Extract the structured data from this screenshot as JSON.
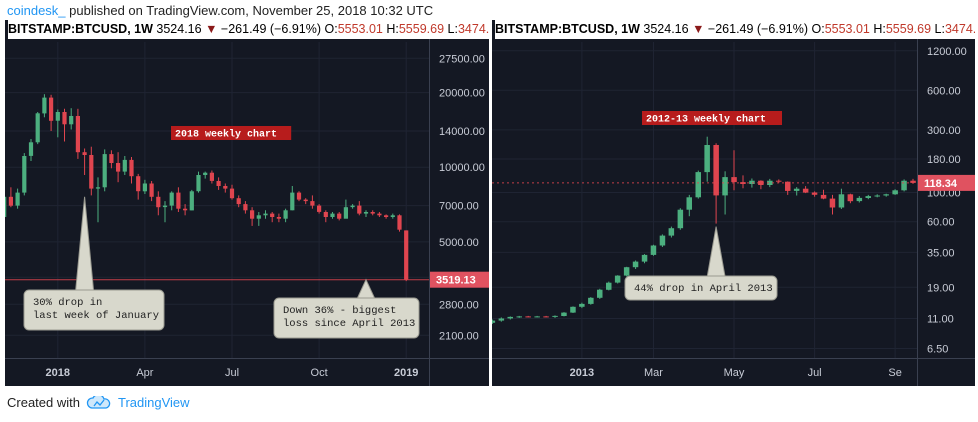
{
  "header": {
    "brand": "coindesk_",
    "text": " published on TradingView.com, November 25, 2018 10:32 UTC"
  },
  "footer": {
    "created_with": "Created with",
    "tradingview": "TradingView"
  },
  "colors": {
    "up": "#4caf7f",
    "down": "#e0454f",
    "background": "#141823",
    "label_bg": "#b71c1c",
    "price_tag": "#e05260"
  },
  "chart_data": [
    {
      "type": "candlestick",
      "symbol": "BITSTAMP:BTCUSD",
      "interval": "1W",
      "last": "3524.16",
      "change": "−261.49 (−6.91%)",
      "open": "5553.01",
      "high": "5559.69",
      "low": "3474.",
      "y_scale": "log",
      "ylim": [
        1700,
        32000
      ],
      "y_ticks": [
        "27500.00",
        "20000.00",
        "14000.00",
        "10000.00",
        "7000.00",
        "5000.00",
        "3600.00",
        "2800.00",
        "2100.00"
      ],
      "y_tick_values": [
        27500,
        20000,
        14000,
        10000,
        7000,
        5000,
        3600,
        2800,
        2100
      ],
      "x_ticks": [
        "2018",
        "Apr",
        "Jul",
        "Oct",
        "2019"
      ],
      "x_tick_weeks": [
        0,
        13,
        26,
        39,
        52
      ],
      "x_start_week": -9,
      "last_price_tag": "3519.13",
      "last_price_value": 3519.13,
      "label_tag": "2018 weekly chart",
      "callouts": [
        {
          "text": "30% drop in\nlast week of January",
          "week": 4,
          "price": 7600
        },
        {
          "text": "Down 36% - biggest\nloss since April 2013",
          "week": 46,
          "price": 3519
        }
      ],
      "candles": [
        [
          5900,
          6500,
          5500,
          6300
        ],
        [
          6300,
          7800,
          6100,
          7600
        ],
        [
          7600,
          8300,
          6900,
          7000
        ],
        [
          7000,
          8200,
          6800,
          7900
        ],
        [
          7900,
          11400,
          7700,
          11100
        ],
        [
          11100,
          13000,
          10600,
          12600
        ],
        [
          12600,
          16700,
          12400,
          16500
        ],
        [
          16500,
          19700,
          15900,
          19100
        ],
        [
          19100,
          19600,
          14000,
          15400
        ],
        [
          15400,
          17100,
          13200,
          16700
        ],
        [
          16700,
          17200,
          12700,
          14900
        ],
        [
          14900,
          17300,
          14200,
          16100
        ],
        [
          16100,
          17200,
          10800,
          11500
        ],
        [
          11500,
          11900,
          9300,
          11200
        ],
        [
          11200,
          12100,
          7700,
          8200
        ],
        [
          8200,
          9100,
          6000,
          8300
        ],
        [
          8300,
          11800,
          8000,
          11300
        ],
        [
          11300,
          11700,
          9900,
          10400
        ],
        [
          10400,
          11500,
          8700,
          9600
        ],
        [
          9600,
          11100,
          9300,
          10700
        ],
        [
          10700,
          11000,
          8600,
          9200
        ],
        [
          9200,
          9400,
          7400,
          8000
        ],
        [
          8000,
          8900,
          7800,
          8600
        ],
        [
          8600,
          8800,
          7300,
          7600
        ],
        [
          7600,
          8000,
          6400,
          6900
        ],
        [
          6900,
          7300,
          6000,
          7000
        ],
        [
          7000,
          8000,
          6700,
          7900
        ],
        [
          7900,
          8300,
          6600,
          6800
        ],
        [
          6800,
          7100,
          6400,
          6700
        ],
        [
          6700,
          8100,
          6700,
          8000
        ],
        [
          8000,
          9600,
          7900,
          9300
        ],
        [
          9300,
          9600,
          9000,
          9500
        ],
        [
          9500,
          9700,
          8600,
          8800
        ],
        [
          8800,
          9100,
          8100,
          8400
        ],
        [
          8400,
          8600,
          7900,
          8200
        ],
        [
          8200,
          8500,
          7400,
          7500
        ],
        [
          7500,
          7700,
          6900,
          7100
        ],
        [
          7100,
          7300,
          6500,
          6700
        ],
        [
          6700,
          6900,
          5800,
          6200
        ],
        [
          6200,
          6600,
          5800,
          6400
        ],
        [
          6400,
          6700,
          6200,
          6500
        ],
        [
          6500,
          6600,
          6000,
          6300
        ],
        [
          6300,
          6500,
          6000,
          6200
        ],
        [
          6200,
          6800,
          6000,
          6700
        ],
        [
          6700,
          8400,
          6700,
          7900
        ],
        [
          7900,
          8000,
          7300,
          7400
        ],
        [
          7400,
          7500,
          7100,
          7300
        ],
        [
          7300,
          7700,
          6800,
          7000
        ],
        [
          7000,
          7100,
          6500,
          6600
        ],
        [
          6600,
          6700,
          6000,
          6300
        ],
        [
          6300,
          6600,
          6200,
          6500
        ],
        [
          6500,
          6600,
          6100,
          6200
        ],
        [
          6200,
          7400,
          6300,
          6900
        ],
        [
          6900,
          7100,
          6800,
          7000
        ],
        [
          7000,
          7300,
          6400,
          6500
        ],
        [
          6500,
          6700,
          6300,
          6600
        ],
        [
          6600,
          6700,
          6400,
          6500
        ],
        [
          6500,
          6600,
          6300,
          6400
        ],
        [
          6400,
          6450,
          6200,
          6300
        ],
        [
          6300,
          6500,
          6200,
          6400
        ],
        [
          6400,
          6450,
          5500,
          5600
        ],
        [
          5560,
          5560,
          3474,
          3524
        ]
      ]
    },
    {
      "type": "candlestick",
      "symbol": "BITSTAMP:BTCUSD",
      "interval": "1W",
      "last": "3524.16",
      "change": "−261.49 (−6.91%)",
      "open": "5553.01",
      "high": "5559.69",
      "low": "3474.",
      "y_scale": "log",
      "ylim": [
        5.5,
        1400
      ],
      "y_ticks": [
        "1200.00",
        "600.00",
        "300.00",
        "180.00",
        "100.00",
        "60.00",
        "35.00",
        "19.00",
        "11.00",
        "6.50"
      ],
      "y_tick_values": [
        1200,
        600,
        300,
        180,
        100,
        60,
        35,
        19,
        11,
        6.5
      ],
      "x_ticks": [
        "2013",
        "Mar",
        "May",
        "Jul",
        "Se"
      ],
      "x_tick_weeks": [
        0,
        8,
        17,
        26,
        35
      ],
      "x_start_week": -10,
      "last_price_tag": "118.34",
      "last_price_value": 118.34,
      "label_tag": "2012-13 weekly chart",
      "callouts": [
        {
          "text": "44% drop in April 2013",
          "week": 15,
          "price": 55
        }
      ],
      "candles": [
        [
          10.2,
          10.8,
          10.0,
          10.6
        ],
        [
          10.6,
          11.2,
          10.4,
          11.0
        ],
        [
          11.0,
          11.4,
          10.8,
          11.3
        ],
        [
          11.3,
          11.5,
          11.1,
          11.4
        ],
        [
          11.4,
          11.5,
          11.2,
          11.3
        ],
        [
          11.3,
          11.5,
          11.2,
          11.4
        ],
        [
          11.4,
          11.5,
          11.2,
          11.3
        ],
        [
          11.3,
          11.6,
          11.1,
          11.5
        ],
        [
          11.5,
          12.3,
          11.4,
          12.2
        ],
        [
          12.2,
          13.6,
          12.1,
          13.5
        ],
        [
          13.5,
          14.5,
          13.2,
          14.2
        ],
        [
          14.2,
          16.0,
          14.0,
          15.8
        ],
        [
          15.8,
          18.5,
          15.5,
          18.2
        ],
        [
          18.2,
          21.0,
          18.0,
          20.6
        ],
        [
          20.6,
          23.5,
          20.3,
          23.3
        ],
        [
          23.3,
          27.2,
          23.0,
          27.0
        ],
        [
          27.0,
          30.4,
          26.2,
          29.8
        ],
        [
          29.8,
          34.0,
          29.0,
          33.5
        ],
        [
          33.5,
          40.0,
          33.0,
          39.5
        ],
        [
          39.5,
          48.0,
          38.5,
          47.0
        ],
        [
          47.0,
          55.0,
          45.5,
          53.5
        ],
        [
          53.5,
          76.0,
          52.0,
          74.0
        ],
        [
          74.0,
          96.0,
          66.0,
          92.0
        ],
        [
          92.0,
          147.0,
          90.0,
          143.0
        ],
        [
          143.0,
          266.0,
          121.0,
          230.0
        ],
        [
          230.0,
          237.0,
          58.0,
          95.0
        ],
        [
          95.0,
          145.0,
          68.0,
          131.0
        ],
        [
          131.0,
          210.0,
          104.0,
          120.0
        ],
        [
          120.0,
          135.0,
          108.0,
          116.0
        ],
        [
          116.0,
          128.0,
          109.0,
          123.0
        ],
        [
          123.0,
          124.0,
          106.0,
          114.0
        ],
        [
          114.0,
          127.0,
          110.0,
          123.0
        ],
        [
          123.0,
          126.0,
          118.0,
          121.0
        ],
        [
          121.0,
          121.5,
          96.0,
          103.0
        ],
        [
          103.0,
          110.0,
          95.0,
          107.0
        ],
        [
          107.0,
          112.0,
          99.0,
          100.0
        ],
        [
          100.0,
          102.0,
          93.0,
          96.0
        ],
        [
          96.0,
          105.0,
          89.0,
          90.0
        ],
        [
          90.0,
          96.0,
          68.0,
          77.0
        ],
        [
          77.0,
          107.0,
          75.0,
          97.0
        ],
        [
          97.0,
          98.0,
          83.0,
          86.0
        ],
        [
          86.0,
          94.0,
          84.0,
          91.0
        ],
        [
          91.0,
          96.0,
          89.0,
          94.0
        ],
        [
          94.0,
          97.0,
          92.0,
          95.0
        ],
        [
          95.0,
          98.0,
          93.0,
          97.0
        ],
        [
          97.0,
          106.0,
          96.0,
          104.0
        ],
        [
          104.0,
          126.0,
          102.0,
          123.0
        ],
        [
          123.0,
          127.0,
          117.0,
          118.3
        ]
      ]
    }
  ]
}
